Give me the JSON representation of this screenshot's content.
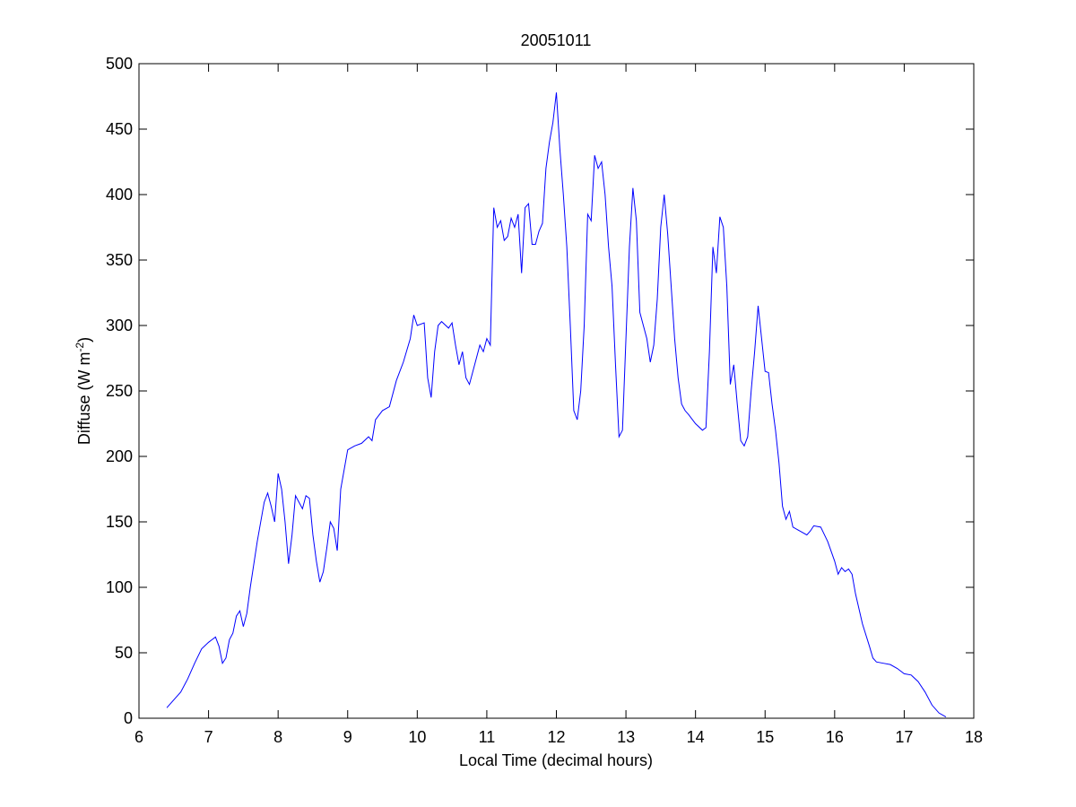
{
  "chart_data": {
    "type": "line",
    "title": "20051011",
    "xlabel": "Local Time (decimal hours)",
    "ylabel": {
      "main": "Diffuse (W m",
      "sup": "-2",
      "end": ")"
    },
    "color": "#0000ff",
    "xlim": [
      6,
      18
    ],
    "xticks": [
      6,
      7,
      8,
      9,
      10,
      11,
      12,
      13,
      14,
      15,
      16,
      17,
      18
    ],
    "ylim": [
      0,
      500
    ],
    "yticks": [
      0,
      50,
      100,
      150,
      200,
      250,
      300,
      350,
      400,
      450,
      500
    ],
    "x": [
      6.4,
      6.5,
      6.6,
      6.7,
      6.8,
      6.9,
      7.0,
      7.05,
      7.1,
      7.15,
      7.2,
      7.25,
      7.3,
      7.35,
      7.4,
      7.45,
      7.5,
      7.55,
      7.6,
      7.7,
      7.8,
      7.85,
      7.9,
      7.95,
      8.0,
      8.05,
      8.1,
      8.15,
      8.2,
      8.25,
      8.3,
      8.35,
      8.4,
      8.45,
      8.5,
      8.55,
      8.6,
      8.65,
      8.7,
      8.75,
      8.8,
      8.85,
      8.9,
      9.0,
      9.1,
      9.2,
      9.3,
      9.35,
      9.4,
      9.5,
      9.6,
      9.7,
      9.8,
      9.9,
      9.95,
      10.0,
      10.1,
      10.15,
      10.2,
      10.25,
      10.3,
      10.35,
      10.45,
      10.5,
      10.55,
      10.6,
      10.65,
      10.7,
      10.75,
      10.8,
      10.9,
      10.95,
      11.0,
      11.05,
      11.1,
      11.15,
      11.2,
      11.25,
      11.3,
      11.35,
      11.4,
      11.45,
      11.5,
      11.55,
      11.6,
      11.65,
      11.7,
      11.75,
      11.8,
      11.85,
      11.9,
      11.95,
      12.0,
      12.05,
      12.1,
      12.15,
      12.2,
      12.25,
      12.3,
      12.35,
      12.4,
      12.45,
      12.5,
      12.55,
      12.6,
      12.65,
      12.7,
      12.75,
      12.8,
      12.85,
      12.9,
      12.95,
      13.0,
      13.05,
      13.1,
      13.15,
      13.2,
      13.25,
      13.3,
      13.35,
      13.4,
      13.45,
      13.5,
      13.55,
      13.6,
      13.65,
      13.7,
      13.75,
      13.8,
      13.85,
      13.9,
      14.0,
      14.1,
      14.15,
      14.2,
      14.25,
      14.3,
      14.35,
      14.4,
      14.45,
      14.5,
      14.55,
      14.6,
      14.65,
      14.7,
      14.75,
      14.8,
      14.85,
      14.9,
      14.95,
      15.0,
      15.05,
      15.1,
      15.15,
      15.2,
      15.25,
      15.3,
      15.35,
      15.4,
      15.5,
      15.6,
      15.65,
      15.7,
      15.8,
      15.9,
      16.0,
      16.05,
      16.1,
      16.15,
      16.2,
      16.25,
      16.3,
      16.4,
      16.5,
      16.55,
      16.6,
      16.7,
      16.8,
      16.9,
      17.0,
      17.1,
      17.2,
      17.3,
      17.4,
      17.5,
      17.6
    ],
    "values": [
      8,
      14,
      20,
      30,
      42,
      53,
      58,
      60,
      62,
      55,
      42,
      46,
      60,
      65,
      78,
      82,
      70,
      80,
      100,
      135,
      165,
      172,
      162,
      150,
      187,
      175,
      150,
      118,
      140,
      170,
      165,
      160,
      170,
      168,
      140,
      120,
      104,
      112,
      130,
      150,
      145,
      128,
      175,
      205,
      208,
      210,
      215,
      212,
      228,
      235,
      238,
      258,
      272,
      290,
      308,
      300,
      302,
      260,
      245,
      280,
      300,
      303,
      298,
      302,
      285,
      270,
      280,
      260,
      255,
      265,
      285,
      280,
      290,
      285,
      390,
      375,
      380,
      365,
      368,
      382,
      375,
      385,
      340,
      390,
      393,
      362,
      362,
      372,
      378,
      420,
      440,
      455,
      478,
      435,
      400,
      360,
      300,
      235,
      228,
      250,
      300,
      385,
      380,
      430,
      420,
      425,
      400,
      360,
      330,
      270,
      215,
      220,
      290,
      360,
      405,
      380,
      310,
      300,
      290,
      272,
      285,
      320,
      375,
      400,
      370,
      330,
      290,
      260,
      240,
      235,
      232,
      225,
      220,
      222,
      280,
      360,
      340,
      383,
      375,
      330,
      255,
      270,
      240,
      212,
      208,
      215,
      250,
      280,
      315,
      290,
      265,
      264,
      240,
      220,
      195,
      162,
      152,
      158,
      146,
      143,
      140,
      143,
      147,
      146,
      135,
      120,
      110,
      115,
      112,
      114,
      110,
      95,
      72,
      55,
      46,
      43,
      42,
      41,
      38,
      34,
      33,
      28,
      20,
      10,
      4,
      1
    ]
  }
}
